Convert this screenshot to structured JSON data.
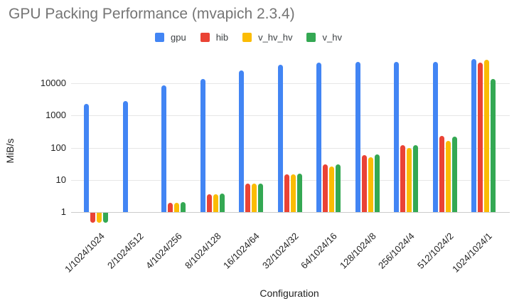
{
  "chart_data": {
    "type": "bar",
    "title": "GPU Packing Performance (mvapich 2.3.4)",
    "xlabel": "Configuration",
    "ylabel": "MiB/s",
    "y_scale": "log",
    "y_ticks": [
      1,
      10,
      100,
      1000,
      10000
    ],
    "ylim": [
      0.45,
      62000
    ],
    "grid": true,
    "legend_position": "top",
    "categories": [
      "1/1024/1024",
      "2/1024/512",
      "4/1024/256",
      "8/1024/128",
      "16/1024/64",
      "32/1024/32",
      "64/1024/16",
      "128/1024/8",
      "256/1024/4",
      "512/1024/2",
      "1024/1024/1"
    ],
    "series": [
      {
        "name": "gpu",
        "color": "#4285F4",
        "values": [
          2250,
          2800,
          8500,
          13500,
          25000,
          37000,
          44000,
          46000,
          47000,
          46000,
          56000
        ]
      },
      {
        "name": "hib",
        "color": "#EA4335",
        "values": [
          0.5,
          null,
          1.9,
          3.6,
          7.5,
          15,
          30,
          58,
          118,
          235,
          44000
        ]
      },
      {
        "name": "v_hv_hv",
        "color": "#FBBC04",
        "values": [
          0.5,
          null,
          1.9,
          3.6,
          7.5,
          15,
          26,
          51,
          97,
          160,
          53000
        ]
      },
      {
        "name": "v_hv",
        "color": "#34A853",
        "values": [
          0.5,
          null,
          2.0,
          3.8,
          7.8,
          15.5,
          31,
          61,
          121,
          215,
          13500
        ]
      }
    ]
  }
}
